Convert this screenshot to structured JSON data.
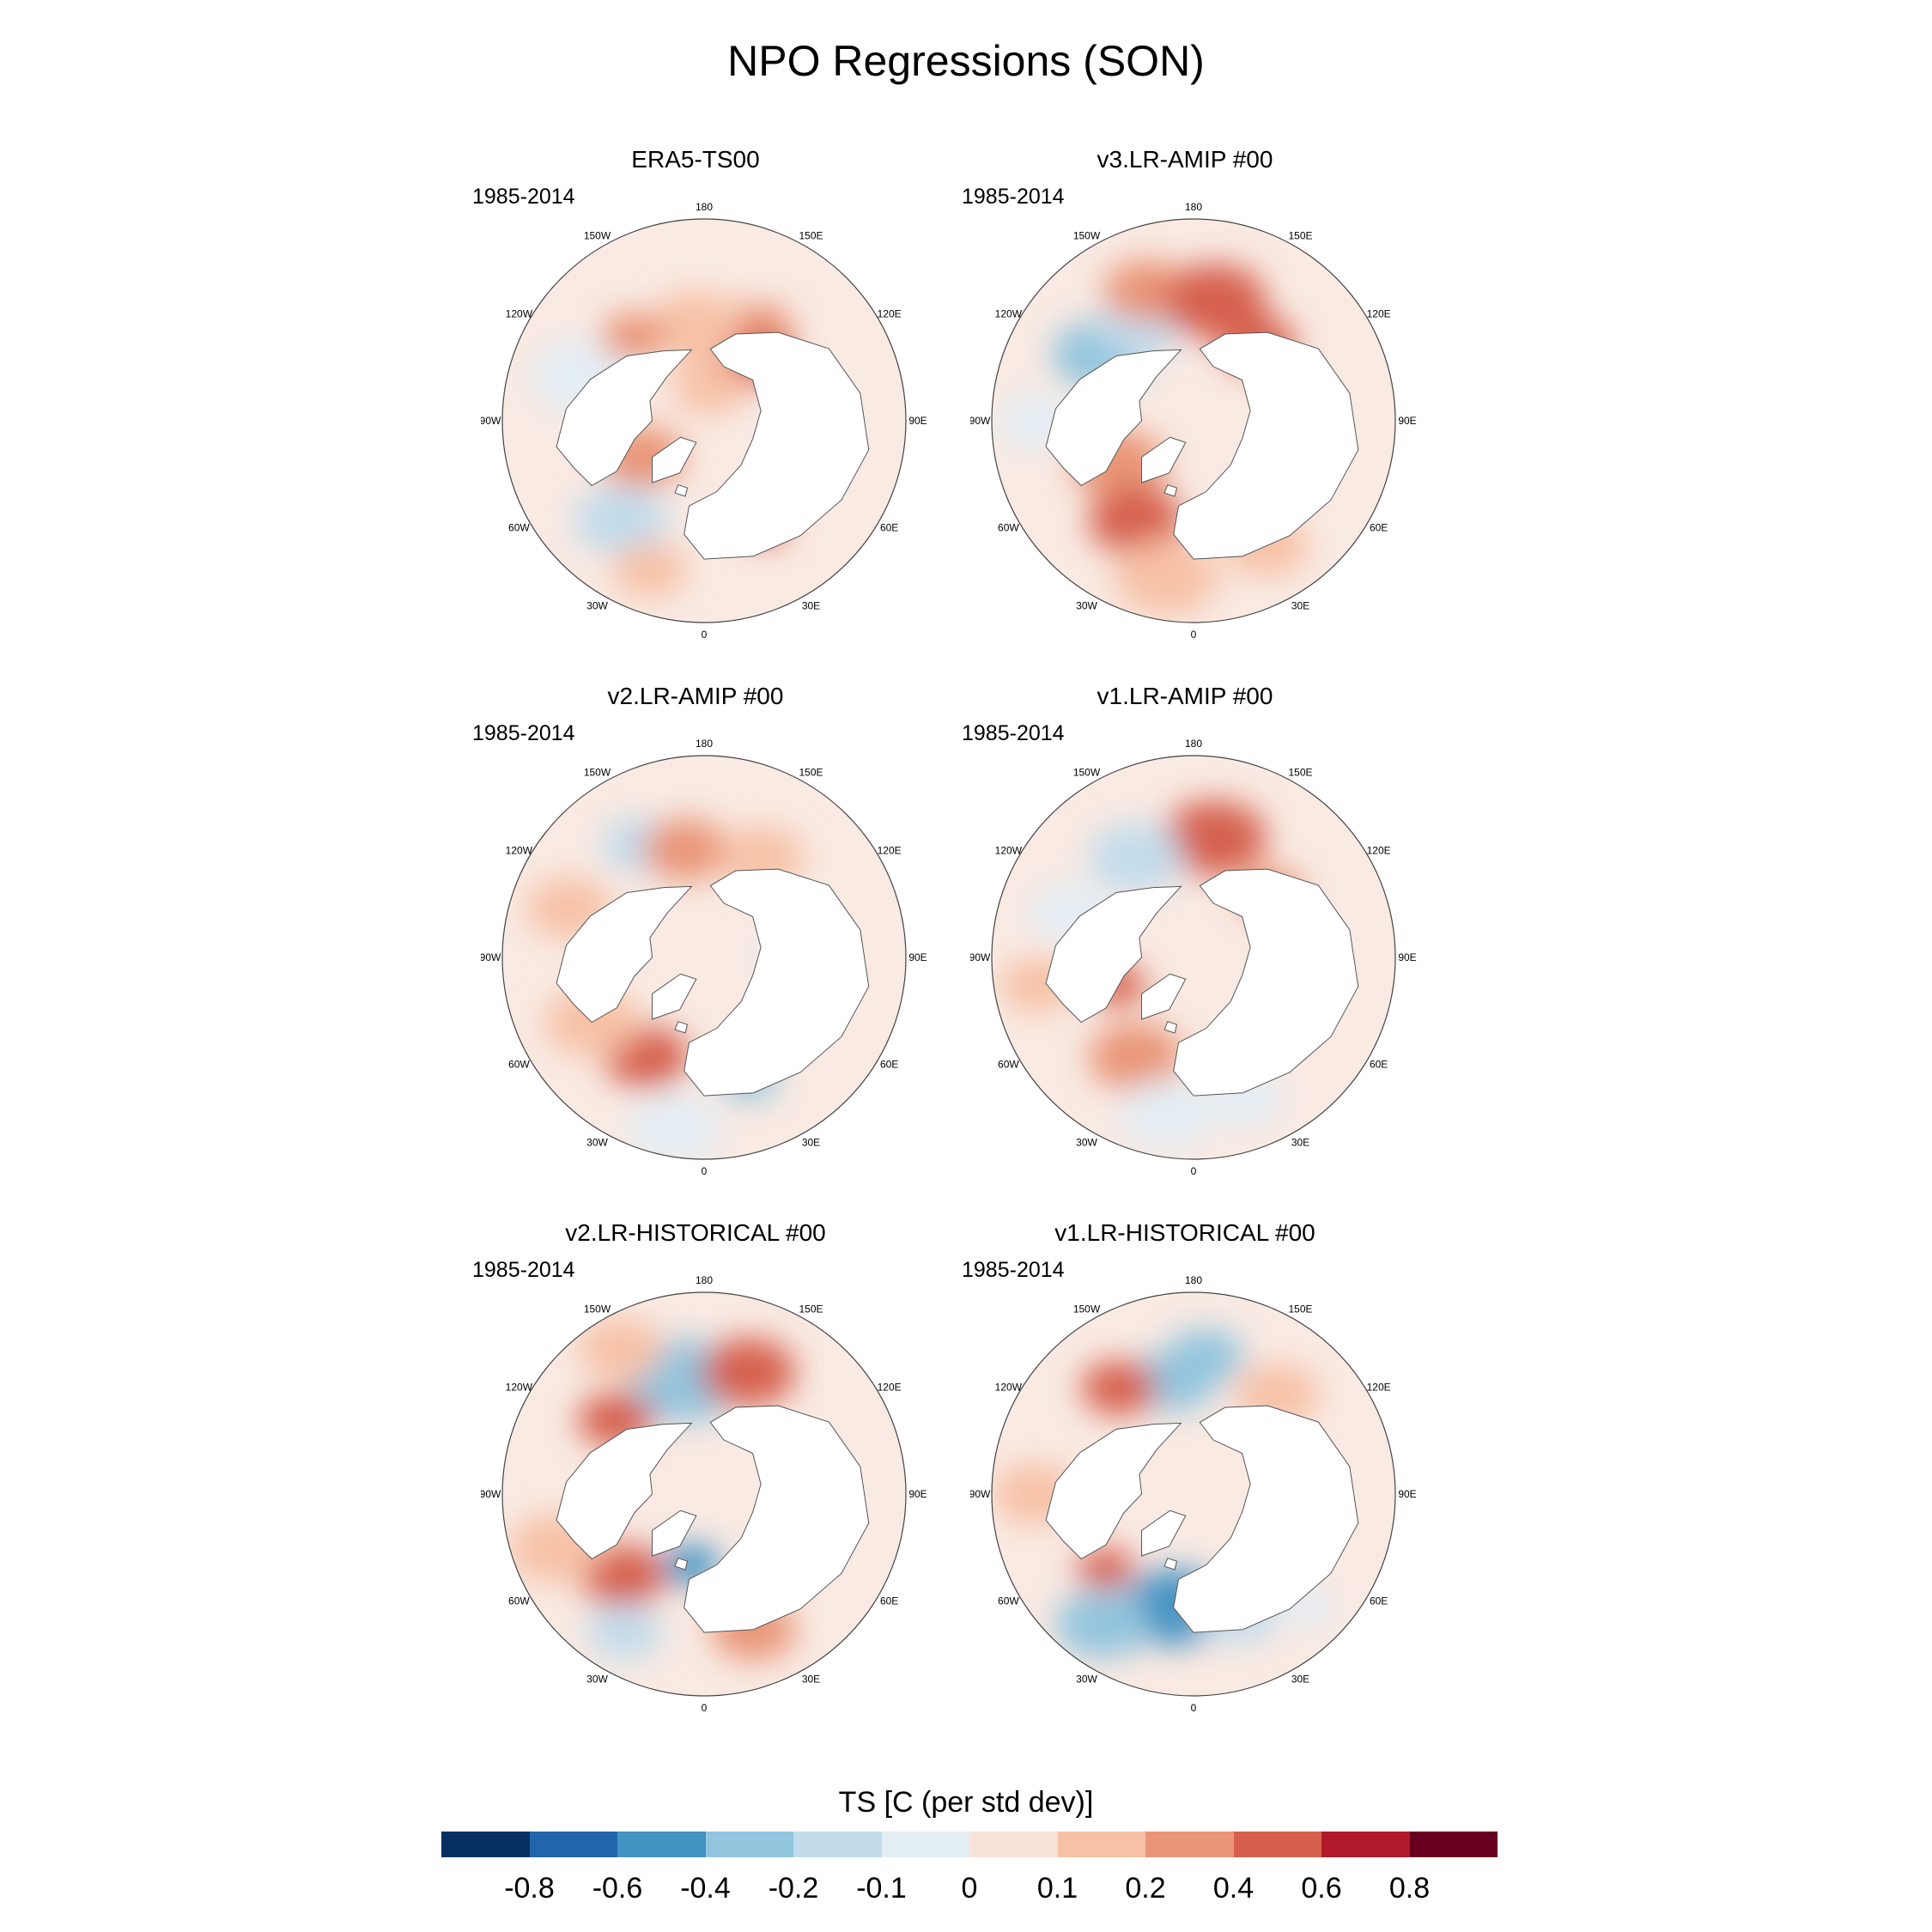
{
  "title": "NPO Regressions (SON)",
  "panels": [
    {
      "title": "ERA5-TS00",
      "period": "1985-2014",
      "anoms": [
        {
          "lon": 150,
          "colat": 36,
          "r": 0.8,
          "v": 0.2
        },
        {
          "lon": 140,
          "colat": 28,
          "r": 0.8,
          "v": 0.4
        },
        {
          "lon": -175,
          "colat": 33,
          "r": 1.0,
          "v": 0.1
        },
        {
          "lon": -110,
          "colat": 45,
          "r": 1.1,
          "v": -0.1
        },
        {
          "lon": -140,
          "colat": 38,
          "r": 0.7,
          "v": 0.2
        },
        {
          "lon": -60,
          "colat": 25,
          "r": 0.9,
          "v": 0.2
        },
        {
          "lon": -40,
          "colat": 45,
          "r": 1.0,
          "v": -0.2
        },
        {
          "lon": -20,
          "colat": 55,
          "r": 0.8,
          "v": 0.1
        },
        {
          "lon": 30,
          "colat": 42,
          "r": 0.5,
          "v": 0.4
        },
        {
          "lon": 170,
          "colat": 12,
          "r": 0.8,
          "v": 0.1
        },
        {
          "lon": 90,
          "colat": 35,
          "r": 0.8,
          "v": -0.1
        }
      ]
    },
    {
      "title": "v3.LR-AMIP  #00",
      "period": "1985-2014",
      "anoms": [
        {
          "lon": -125,
          "colat": 40,
          "r": 1.0,
          "v": -0.4
        },
        {
          "lon": -150,
          "colat": 38,
          "r": 0.9,
          "v": -0.2
        },
        {
          "lon": -160,
          "colat": 48,
          "r": 0.9,
          "v": 0.2
        },
        {
          "lon": 170,
          "colat": 42,
          "r": 1.1,
          "v": 0.4
        },
        {
          "lon": 140,
          "colat": 35,
          "r": 0.8,
          "v": 0.4
        },
        {
          "lon": -60,
          "colat": 30,
          "r": 1.0,
          "v": 0.2
        },
        {
          "lon": -30,
          "colat": 40,
          "r": 1.0,
          "v": 0.4
        },
        {
          "lon": -10,
          "colat": 55,
          "r": 1.1,
          "v": 0.1
        },
        {
          "lon": 30,
          "colat": 50,
          "r": 0.9,
          "v": 0.1
        },
        {
          "lon": -90,
          "colat": 55,
          "r": 0.8,
          "v": -0.1
        }
      ]
    },
    {
      "title": "v2.LR-AMIP  #00",
      "period": "1985-2014",
      "anoms": [
        {
          "lon": -150,
          "colat": 45,
          "r": 0.8,
          "v": -0.2
        },
        {
          "lon": -170,
          "colat": 38,
          "r": 0.9,
          "v": 0.2
        },
        {
          "lon": 150,
          "colat": 40,
          "r": 0.9,
          "v": 0.1
        },
        {
          "lon": -30,
          "colat": 40,
          "r": 0.9,
          "v": 0.4
        },
        {
          "lon": 20,
          "colat": 45,
          "r": 0.6,
          "v": -0.4
        },
        {
          "lon": -60,
          "colat": 45,
          "r": 1.0,
          "v": 0.1
        },
        {
          "lon": -10,
          "colat": 60,
          "r": 1.0,
          "v": -0.1
        },
        {
          "lon": 90,
          "colat": 30,
          "r": 0.7,
          "v": -0.1
        },
        {
          "lon": -110,
          "colat": 50,
          "r": 0.9,
          "v": 0.1
        }
      ]
    },
    {
      "title": "v1.LR-AMIP  #00",
      "period": "1985-2014",
      "anoms": [
        {
          "lon": 170,
          "colat": 42,
          "r": 1.1,
          "v": 0.4
        },
        {
          "lon": -150,
          "colat": 40,
          "r": 1.0,
          "v": -0.2
        },
        {
          "lon": -110,
          "colat": 45,
          "r": 0.9,
          "v": -0.1
        },
        {
          "lon": -70,
          "colat": 28,
          "r": 0.6,
          "v": 0.4
        },
        {
          "lon": -30,
          "colat": 40,
          "r": 1.0,
          "v": 0.2
        },
        {
          "lon": -10,
          "colat": 55,
          "r": 1.0,
          "v": -0.1
        },
        {
          "lon": 130,
          "colat": 35,
          "r": 0.7,
          "v": 0.2
        },
        {
          "lon": 20,
          "colat": 52,
          "r": 0.8,
          "v": -0.1
        },
        {
          "lon": -80,
          "colat": 55,
          "r": 0.8,
          "v": 0.1
        }
      ]
    },
    {
      "title": "v2.LR-HISTORICAL  #00",
      "period": "1985-2014",
      "anoms": [
        {
          "lon": -170,
          "colat": 40,
          "r": 1.2,
          "v": -0.4
        },
        {
          "lon": 160,
          "colat": 45,
          "r": 1.0,
          "v": 0.4
        },
        {
          "lon": -130,
          "colat": 40,
          "r": 0.8,
          "v": 0.4
        },
        {
          "lon": -150,
          "colat": 58,
          "r": 0.9,
          "v": 0.1
        },
        {
          "lon": -45,
          "colat": 40,
          "r": 0.9,
          "v": 0.4
        },
        {
          "lon": -10,
          "colat": 25,
          "r": 0.6,
          "v": -0.6
        },
        {
          "lon": -30,
          "colat": 55,
          "r": 0.8,
          "v": -0.2
        },
        {
          "lon": -70,
          "colat": 55,
          "r": 1.0,
          "v": 0.1
        },
        {
          "lon": 20,
          "colat": 50,
          "r": 0.9,
          "v": 0.2
        }
      ]
    },
    {
      "title": "v1.LR-HISTORICAL  #00",
      "period": "1985-2014",
      "anoms": [
        {
          "lon": -170,
          "colat": 40,
          "r": 0.9,
          "v": -0.4
        },
        {
          "lon": 175,
          "colat": 48,
          "r": 0.8,
          "v": -0.4
        },
        {
          "lon": -145,
          "colat": 45,
          "r": 0.8,
          "v": 0.4
        },
        {
          "lon": -10,
          "colat": 40,
          "r": 1.1,
          "v": -0.6
        },
        {
          "lon": -35,
          "colat": 55,
          "r": 1.0,
          "v": -0.4
        },
        {
          "lon": -50,
          "colat": 40,
          "r": 0.6,
          "v": 0.4
        },
        {
          "lon": -90,
          "colat": 55,
          "r": 0.9,
          "v": 0.1
        },
        {
          "lon": 20,
          "colat": 45,
          "r": 0.8,
          "v": -0.2
        },
        {
          "lon": 140,
          "colat": 45,
          "r": 0.9,
          "v": 0.1
        },
        {
          "lon": 45,
          "colat": 55,
          "r": 0.6,
          "v": -0.1
        }
      ]
    }
  ],
  "lon_labels": [
    "180",
    "150E",
    "120E",
    "90E",
    "60E",
    "30E",
    "0",
    "30W",
    "60W",
    "90W",
    "120W",
    "150W"
  ],
  "colorbar": {
    "title": "TS [C (per std dev)]",
    "ticks": [
      "-0.8",
      "-0.6",
      "-0.4",
      "-0.2",
      "-0.1",
      "0",
      "0.1",
      "0.2",
      "0.4",
      "0.6",
      "0.8"
    ],
    "levels": [
      -1.0,
      -0.8,
      -0.6,
      -0.4,
      -0.2,
      -0.1,
      0,
      0.1,
      0.2,
      0.4,
      0.6,
      0.8,
      1.0
    ],
    "colors": [
      "#053061",
      "#2166ac",
      "#4393c3",
      "#92c5de",
      "#c2dcec",
      "#e4eef5",
      "#f9e3d8",
      "#f7c1a6",
      "#e99577",
      "#d6604d",
      "#b2182b",
      "#67001f"
    ]
  }
}
